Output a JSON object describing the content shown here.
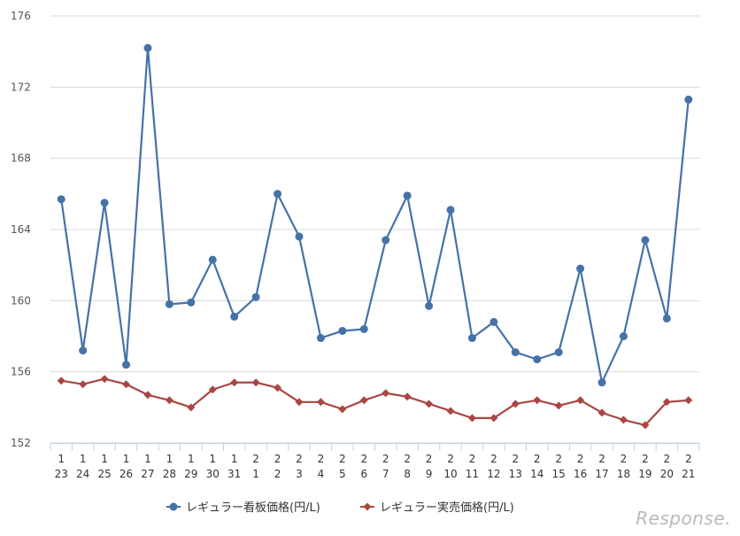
{
  "chart_data": {
    "type": "line",
    "ylim": [
      152,
      176
    ],
    "yticks": [
      152,
      156,
      160,
      164,
      168,
      172,
      176
    ],
    "categories": [
      [
        "1",
        "23"
      ],
      [
        "1",
        "24"
      ],
      [
        "1",
        "25"
      ],
      [
        "1",
        "26"
      ],
      [
        "1",
        "27"
      ],
      [
        "1",
        "28"
      ],
      [
        "1",
        "29"
      ],
      [
        "1",
        "30"
      ],
      [
        "1",
        "31"
      ],
      [
        "2",
        "1"
      ],
      [
        "2",
        "2"
      ],
      [
        "2",
        "3"
      ],
      [
        "2",
        "4"
      ],
      [
        "2",
        "5"
      ],
      [
        "2",
        "6"
      ],
      [
        "2",
        "7"
      ],
      [
        "2",
        "8"
      ],
      [
        "2",
        "9"
      ],
      [
        "2",
        "10"
      ],
      [
        "2",
        "11"
      ],
      [
        "2",
        "12"
      ],
      [
        "2",
        "13"
      ],
      [
        "2",
        "14"
      ],
      [
        "2",
        "15"
      ],
      [
        "2",
        "16"
      ],
      [
        "2",
        "17"
      ],
      [
        "2",
        "18"
      ],
      [
        "2",
        "19"
      ],
      [
        "2",
        "20"
      ],
      [
        "2",
        "21"
      ]
    ],
    "series": [
      {
        "name": "レギュラー看板価格(円/L)",
        "color": "#4572a7",
        "marker": "circle",
        "values": [
          165.7,
          157.2,
          165.5,
          156.4,
          174.2,
          159.8,
          159.9,
          162.3,
          159.1,
          160.2,
          166.0,
          163.6,
          157.9,
          158.3,
          158.4,
          163.4,
          165.9,
          159.7,
          165.1,
          157.9,
          158.8,
          157.1,
          156.7,
          157.1,
          161.8,
          155.4,
          158.0,
          163.4,
          159.0,
          171.3
        ]
      },
      {
        "name": "レギュラー実売価格(円/L)",
        "color": "#aa4643",
        "marker": "diamond",
        "values": [
          155.5,
          155.3,
          155.6,
          155.3,
          154.7,
          154.4,
          154.0,
          155.0,
          155.4,
          155.4,
          155.1,
          154.3,
          154.3,
          153.9,
          154.4,
          154.8,
          154.6,
          154.2,
          153.8,
          153.4,
          153.4,
          154.2,
          154.4,
          154.1,
          154.4,
          153.7,
          153.3,
          153.0,
          154.3,
          154.4
        ]
      }
    ],
    "grid": true,
    "legend_position": "bottom-center"
  },
  "watermark": "Response."
}
